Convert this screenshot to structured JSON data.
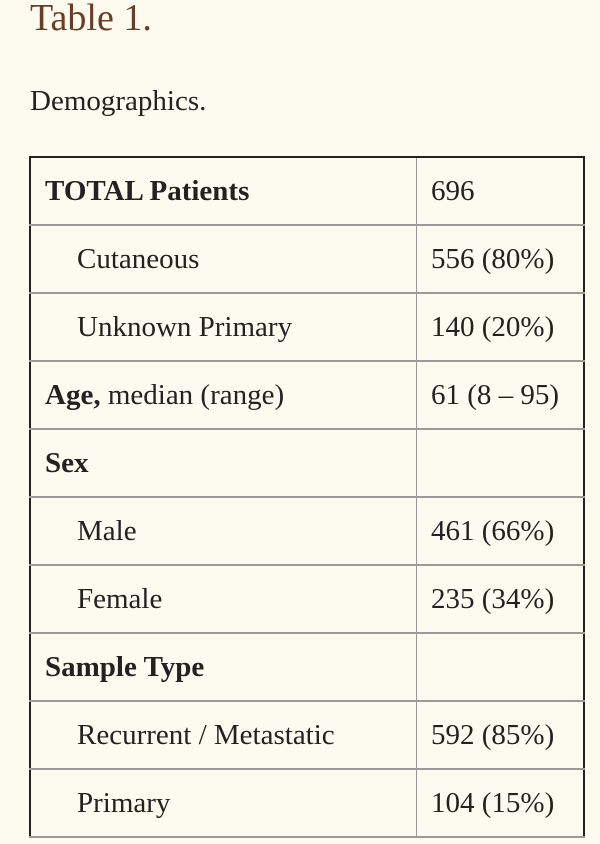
{
  "header": {
    "label": "Table 1.",
    "caption": "Demographics."
  },
  "table": {
    "rows": [
      {
        "label_bold": "TOTAL Patients",
        "label_rest": "",
        "value": "696",
        "indent": false
      },
      {
        "label_bold": "",
        "label_rest": "Cutaneous",
        "value": "556 (80%)",
        "indent": true
      },
      {
        "label_bold": "",
        "label_rest": "Unknown Primary",
        "value": "140 (20%)",
        "indent": true
      },
      {
        "label_bold": "Age,",
        "label_rest": " median (range)",
        "value": "61 (8 – 95)",
        "indent": false
      },
      {
        "label_bold": "Sex",
        "label_rest": "",
        "value": "",
        "indent": false
      },
      {
        "label_bold": "",
        "label_rest": "Male",
        "value": "461 (66%)",
        "indent": true
      },
      {
        "label_bold": "",
        "label_rest": "Female",
        "value": "235 (34%)",
        "indent": true
      },
      {
        "label_bold": "Sample Type",
        "label_rest": "",
        "value": "",
        "indent": false
      },
      {
        "label_bold": "",
        "label_rest": "Recurrent / Metastatic",
        "value": "592 (85%)",
        "indent": true
      },
      {
        "label_bold": "",
        "label_rest": "Primary",
        "value": "104 (15%)",
        "indent": true
      }
    ]
  },
  "colors": {
    "background": "#fdfbef",
    "title": "#6b3d25",
    "text": "#222222",
    "border": "#9a9a9a"
  }
}
